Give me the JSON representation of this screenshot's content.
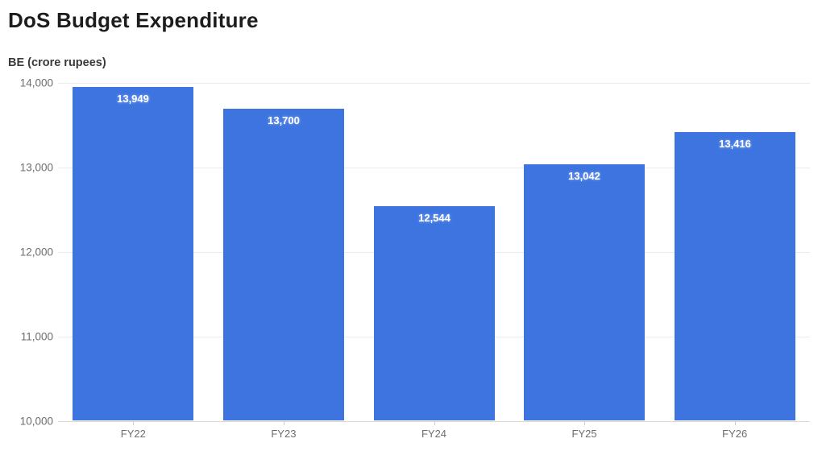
{
  "page": {
    "title": "DoS Budget Expenditure",
    "unit_label": "BE (crore rupees)"
  },
  "chart_data": {
    "type": "bar",
    "title": "DoS Budget Expenditure",
    "ylabel": "BE (crore rupees)",
    "xlabel": "",
    "categories": [
      "FY22",
      "FY23",
      "FY24",
      "FY25",
      "FY26"
    ],
    "values": [
      13949,
      13700,
      12544,
      13042,
      13416
    ],
    "value_labels": [
      "13,949",
      "13,700",
      "12,544",
      "13,042",
      "13,416"
    ],
    "ylim": [
      10000,
      14000
    ],
    "yticks": [
      10000,
      11000,
      12000,
      13000,
      14000
    ],
    "ytick_labels": [
      "10,000",
      "11,000",
      "12,000",
      "13,000",
      "14,000"
    ],
    "grid": true,
    "legend": "none",
    "bar_color": "#3d74e0",
    "value_label_color": "#ffffff"
  }
}
